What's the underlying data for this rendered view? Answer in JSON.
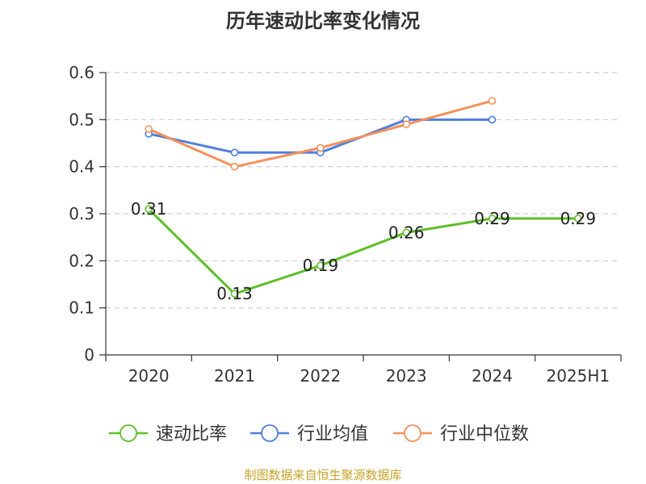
{
  "title": "历年速动比率变化情况",
  "source": "制图数据来自恒生聚源数据库",
  "colors": {
    "series_green": "#5dbf28",
    "series_blue": "#4f7fdd",
    "series_orange": "#f5905a",
    "axis": "#333333",
    "grid": "#cccccc",
    "source": "#c9a227"
  },
  "chart_data": {
    "type": "line",
    "categories": [
      "2020",
      "2021",
      "2022",
      "2023",
      "2024",
      "2025H1"
    ],
    "ylim": [
      0,
      0.6
    ],
    "yticks": [
      0,
      0.1,
      0.2,
      0.3,
      0.4,
      0.5,
      0.6
    ],
    "ytick_labels": [
      "0",
      "0.1",
      "0.2",
      "0.3",
      "0.4",
      "0.5",
      "0.6"
    ],
    "grid": "horizontal dashed",
    "legend_position": "bottom",
    "series": [
      {
        "name": "速动比率",
        "color": "#5dbf28",
        "values": [
          0.31,
          0.13,
          0.19,
          0.26,
          0.29,
          0.29
        ],
        "labels": [
          "0.31",
          "0.13",
          "0.19",
          "0.26",
          "0.29",
          "0.29"
        ]
      },
      {
        "name": "行业均值",
        "color": "#4f7fdd",
        "values": [
          0.47,
          0.43,
          0.43,
          0.5,
          0.5,
          null
        ]
      },
      {
        "name": "行业中位数",
        "color": "#f5905a",
        "values": [
          0.48,
          0.4,
          0.44,
          0.49,
          0.54,
          null
        ]
      }
    ]
  }
}
